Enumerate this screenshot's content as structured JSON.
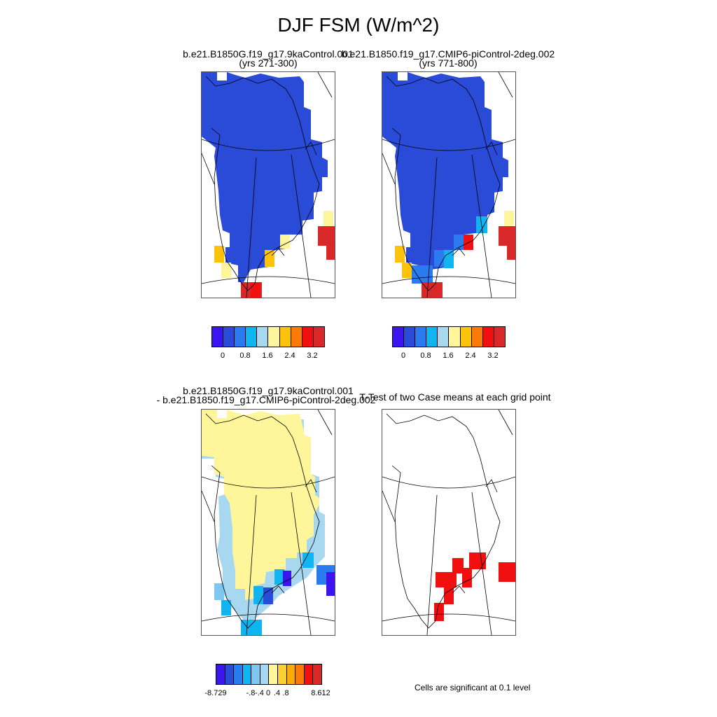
{
  "title": "DJF FSM (W/m^2)",
  "panels": {
    "a": {
      "title_line1": "b.e21.B1850G.f19_g17.9kaControl.001",
      "title_line2": "(yrs 271-300)"
    },
    "b": {
      "title_line1": "b.e21.B1850.f19_g17.CMIP6-piControl-2deg.002",
      "title_line2": "(yrs 771-800)"
    },
    "c": {
      "title_line1": "b.e21.B1850G.f19_g17.9kaControl.001",
      "title_line2": "- b.e21.B1850.f19_g17.CMIP6-piControl-2deg.002"
    },
    "d": {
      "title_line1": "T-Test of two Case means at each grid point"
    }
  },
  "colorbar_top": {
    "colors": [
      "#3c14f0",
      "#2a4ad8",
      "#2a7af0",
      "#10b4f0",
      "#a8d8f0",
      "#fff59a",
      "#fcc20c",
      "#fc7a08",
      "#f01010",
      "#d82828"
    ],
    "labels": [
      "0",
      "0.8",
      "1.6",
      "2.4",
      "3.2"
    ]
  },
  "colorbar_diff": {
    "colors": [
      "#3c14f0",
      "#2a4ad8",
      "#2a7af0",
      "#10b4f0",
      "#7cc8f0",
      "#a8d8f0",
      "#fff59a",
      "#fcd030",
      "#fcaa08",
      "#fc7a08",
      "#f01010",
      "#d82828"
    ],
    "labels": [
      "-8.729",
      "-.8",
      "-.4",
      "0",
      ".4",
      ".8",
      "8.612"
    ]
  },
  "significance_note": "Cells are significant at 0.1 level",
  "colors": {
    "low": "#2a4ad8",
    "diff_pos": "#fff59a",
    "diff_neg": "#a8d8f0",
    "sig": "#f01010"
  }
}
